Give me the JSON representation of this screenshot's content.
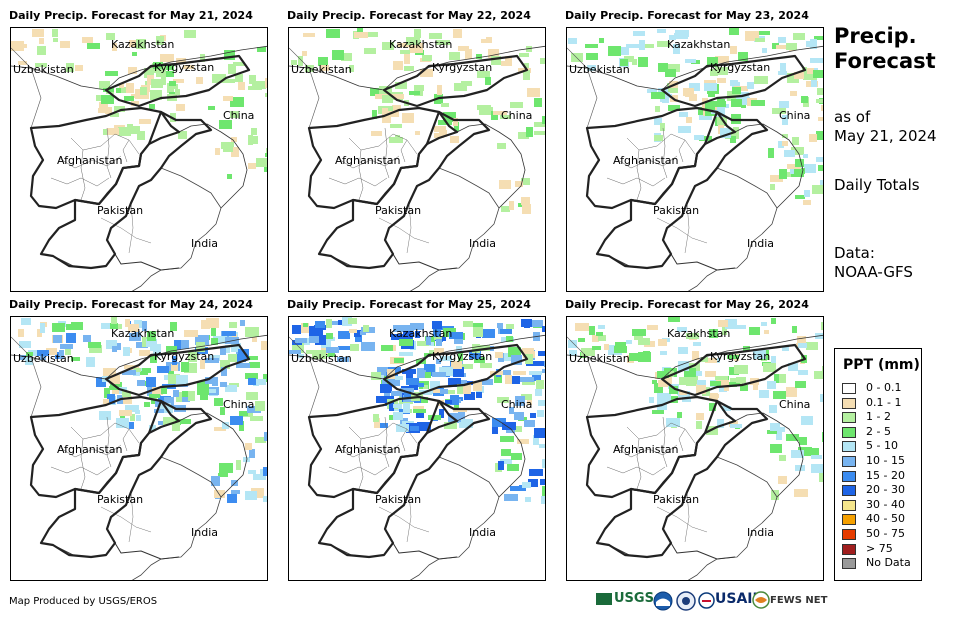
{
  "panels": [
    {
      "title": "Daily Precip. Forecast for May 21, 2024",
      "intensity": 1
    },
    {
      "title": "Daily Precip. Forecast for May 22, 2024",
      "intensity": 1
    },
    {
      "title": "Daily Precip. Forecast for May 23, 2024",
      "intensity": 2
    },
    {
      "title": "Daily Precip. Forecast for May 24, 2024",
      "intensity": 3
    },
    {
      "title": "Daily Precip. Forecast for May 25, 2024",
      "intensity": 4
    },
    {
      "title": "Daily Precip. Forecast for May 26, 2024",
      "intensity": 2
    }
  ],
  "map_labels": {
    "kazakhstan": "Kazakhstan",
    "uzbekistan": "Uzbekistan",
    "kyrgyzstan": "Kyrgyzstan",
    "china": "China",
    "afghanistan": "Afghanistan",
    "pakistan": "Pakistan",
    "india": "India"
  },
  "sidebar": {
    "title_line1": "Precip.",
    "title_line2": "Forecast",
    "as_of": "as of",
    "date": "May 21, 2024",
    "totals": "Daily Totals",
    "data_label": "Data:",
    "data_source": "NOAA-GFS"
  },
  "legend": {
    "title": "PPT (mm)",
    "items": [
      {
        "label": "0 - 0.1",
        "color": "#ffffff"
      },
      {
        "label": "0.1 - 1",
        "color": "#f5deb3"
      },
      {
        "label": "1 - 2",
        "color": "#b4f0a0"
      },
      {
        "label": "2 - 5",
        "color": "#6ee66e"
      },
      {
        "label": "5 - 10",
        "color": "#b4e6f5"
      },
      {
        "label": "10 - 15",
        "color": "#78b4f0"
      },
      {
        "label": "15 - 20",
        "color": "#3c8cf0"
      },
      {
        "label": "20 - 30",
        "color": "#1e64e6"
      },
      {
        "label": "30 - 40",
        "color": "#f5e68c"
      },
      {
        "label": "40 - 50",
        "color": "#f5a000"
      },
      {
        "label": "50 - 75",
        "color": "#e63c00"
      },
      {
        "label": "> 75",
        "color": "#a01e1e"
      },
      {
        "label": "No Data",
        "color": "#999999"
      }
    ]
  },
  "footer": {
    "credit": "Map Produced by USGS/EROS",
    "logo_usgs": "USGS",
    "logo_usaid": "USAID",
    "logo_fews": "FEWS NET"
  }
}
